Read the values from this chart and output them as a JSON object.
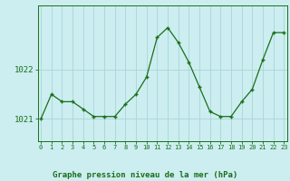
{
  "x": [
    0,
    1,
    2,
    3,
    4,
    5,
    6,
    7,
    8,
    9,
    10,
    11,
    12,
    13,
    14,
    15,
    16,
    17,
    18,
    19,
    20,
    21,
    22,
    23
  ],
  "y": [
    1021.0,
    1021.5,
    1021.35,
    1021.35,
    1021.2,
    1021.05,
    1021.05,
    1021.05,
    1021.3,
    1021.5,
    1021.85,
    1022.65,
    1022.85,
    1022.55,
    1022.15,
    1021.65,
    1021.15,
    1021.05,
    1021.05,
    1021.35,
    1021.6,
    1022.2,
    1022.75,
    1022.75
  ],
  "line_color": "#1a6e1a",
  "marker_color": "#1a6e1a",
  "bg_color": "#cceef0",
  "grid_color": "#aad4d8",
  "title": "Graphe pression niveau de la mer (hPa)",
  "title_color": "#1a6e1a",
  "ytick_labels": [
    "1021",
    "1022"
  ],
  "ytick_values": [
    1021,
    1022
  ],
  "ylim_min": 1020.55,
  "ylim_max": 1023.3,
  "tick_color": "#1a6e1a"
}
